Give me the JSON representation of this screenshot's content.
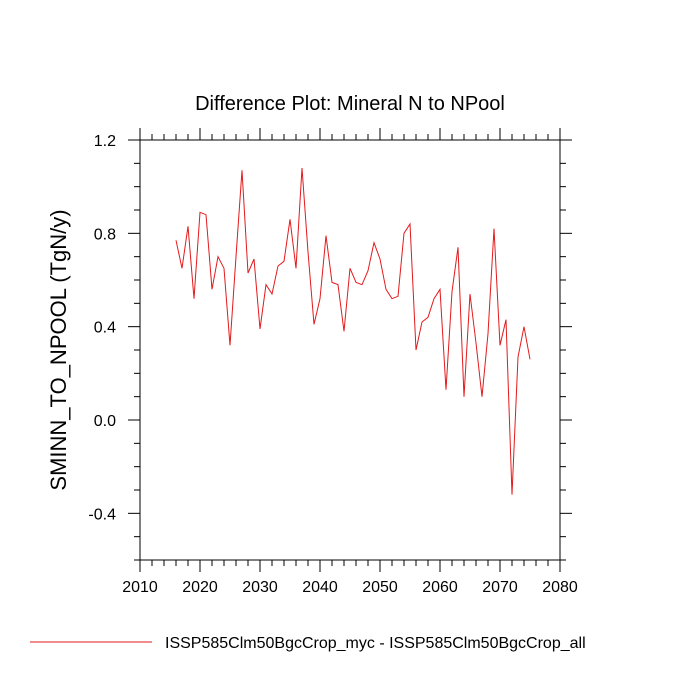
{
  "chart_data": {
    "type": "line",
    "title": "Difference Plot: Mineral N to NPool",
    "xlabel": "",
    "ylabel": "SMINN_TO_NPOOL  (TgN/y)",
    "xlim": [
      2010,
      2080
    ],
    "ylim": [
      -0.6,
      1.2
    ],
    "x_ticks": [
      2010,
      2020,
      2030,
      2040,
      2050,
      2060,
      2070,
      2080
    ],
    "y_ticks": [
      -0.4,
      0.0,
      0.4,
      0.8,
      1.2
    ],
    "x_tick_labels": [
      "2010",
      "2020",
      "2030",
      "2040",
      "2050",
      "2060",
      "2070",
      "2080"
    ],
    "y_tick_labels": [
      "-0.4",
      "0.0",
      "0.4",
      "0.8",
      "1.2"
    ],
    "grid": false,
    "legend_position": "bottom",
    "series": [
      {
        "name": "ISSP585Clm50BgcCrop_myc - ISSP585Clm50BgcCrop_all",
        "color": "#e31a1c",
        "x": [
          2016,
          2017,
          2018,
          2019,
          2020,
          2021,
          2022,
          2023,
          2024,
          2025,
          2026,
          2027,
          2028,
          2029,
          2030,
          2031,
          2032,
          2033,
          2034,
          2035,
          2036,
          2037,
          2038,
          2039,
          2040,
          2041,
          2042,
          2043,
          2044,
          2045,
          2046,
          2047,
          2048,
          2049,
          2050,
          2051,
          2052,
          2053,
          2054,
          2055,
          2056,
          2057,
          2058,
          2059,
          2060,
          2061,
          2062,
          2063,
          2064,
          2065,
          2066,
          2067,
          2068,
          2069,
          2070,
          2071,
          2072,
          2073,
          2074,
          2075
        ],
        "y": [
          0.77,
          0.65,
          0.83,
          0.52,
          0.89,
          0.88,
          0.56,
          0.7,
          0.65,
          0.32,
          0.7,
          1.07,
          0.63,
          0.69,
          0.39,
          0.58,
          0.54,
          0.66,
          0.68,
          0.86,
          0.65,
          1.08,
          0.72,
          0.41,
          0.52,
          0.79,
          0.59,
          0.58,
          0.38,
          0.65,
          0.59,
          0.58,
          0.64,
          0.76,
          0.69,
          0.56,
          0.52,
          0.53,
          0.8,
          0.84,
          0.3,
          0.42,
          0.44,
          0.52,
          0.56,
          0.13,
          0.55,
          0.74,
          0.1,
          0.54,
          0.33,
          0.1,
          0.37,
          0.82,
          0.32,
          0.43,
          -0.32,
          0.27,
          0.4,
          0.26
        ]
      }
    ]
  }
}
